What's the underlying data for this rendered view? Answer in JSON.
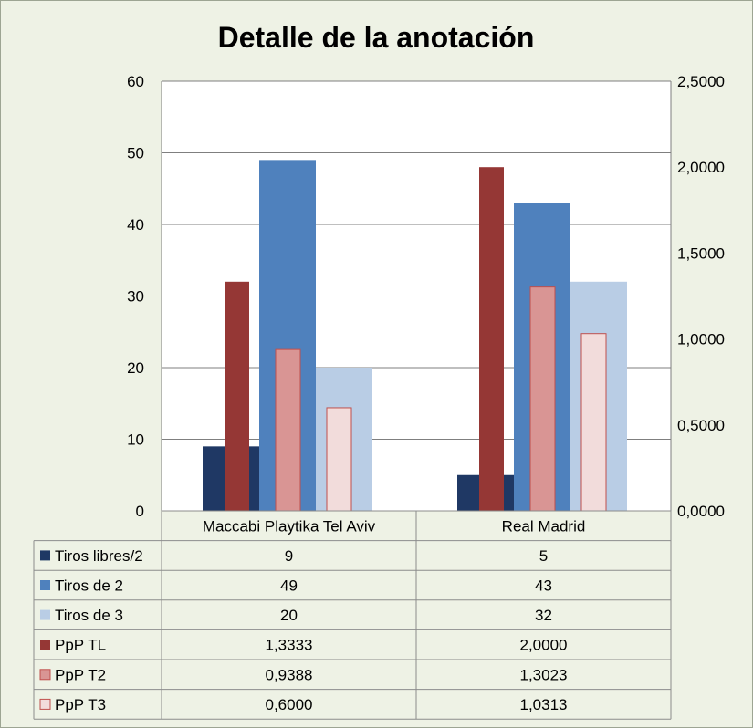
{
  "chart_data": {
    "type": "bar",
    "title": "Detalle de la anotación",
    "categories": [
      "Maccabi Playtika Tel Aviv",
      "Real Madrid"
    ],
    "y_left": {
      "min": 0,
      "max": 60,
      "ticks": [
        "0",
        "10",
        "20",
        "30",
        "40",
        "50",
        "60"
      ]
    },
    "y_right": {
      "min": 0,
      "max": 2.5,
      "ticks": [
        "0,0000",
        "0,5000",
        "1,0000",
        "1,5000",
        "2,0000",
        "2,5000"
      ]
    },
    "series": [
      {
        "name": "Tiros libres/2",
        "axis": "left",
        "values": [
          9,
          5
        ],
        "labels": [
          "9",
          "5"
        ],
        "color": "#1F3864"
      },
      {
        "name": "Tiros de 2",
        "axis": "left",
        "values": [
          49,
          43
        ],
        "labels": [
          "49",
          "43"
        ],
        "color": "#4F81BD"
      },
      {
        "name": "Tiros de 3",
        "axis": "left",
        "values": [
          20,
          32
        ],
        "labels": [
          "20",
          "32"
        ],
        "color": "#B9CDE5"
      },
      {
        "name": "PpP TL",
        "axis": "right",
        "values": [
          1.3333,
          2.0
        ],
        "labels": [
          "1,3333",
          "2,0000"
        ],
        "color": "#953735"
      },
      {
        "name": "PpP T2",
        "axis": "right",
        "values": [
          0.9388,
          1.3023
        ],
        "labels": [
          "0,9388",
          "1,3023"
        ],
        "color": "#D99594",
        "stroke": "#C0504D"
      },
      {
        "name": "PpP T3",
        "axis": "right",
        "values": [
          0.6,
          1.0313
        ],
        "labels": [
          "0,6000",
          "1,0313"
        ],
        "color": "#F2DCDB",
        "stroke": "#C0504D"
      }
    ],
    "legend": "data-table below plot",
    "grid": true
  }
}
